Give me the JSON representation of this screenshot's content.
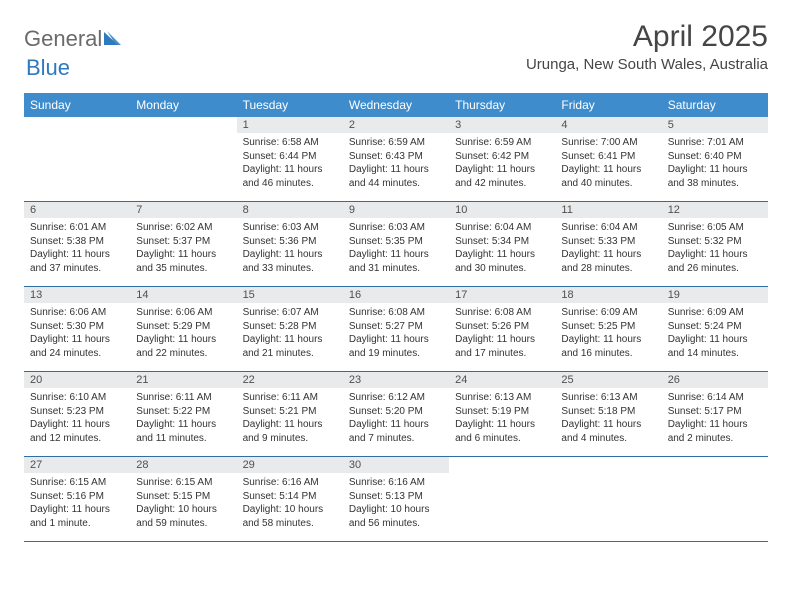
{
  "brand": {
    "textGray": "General",
    "textBlue": "Blue"
  },
  "title": {
    "month": "April 2025",
    "location": "Urunga, New South Wales, Australia"
  },
  "colors": {
    "headerBg": "#3e8ccc",
    "headerText": "#ffffff",
    "dayBarBg": "#e9eaec",
    "rowBorder": "#2f6da3",
    "logoBlue": "#2f7abf",
    "logoGray": "#6b6b6b",
    "bodyText": "#333333"
  },
  "dayHeaders": [
    "Sunday",
    "Monday",
    "Tuesday",
    "Wednesday",
    "Thursday",
    "Friday",
    "Saturday"
  ],
  "weeks": [
    [
      null,
      null,
      {
        "n": "1",
        "sr": "Sunrise: 6:58 AM",
        "ss": "Sunset: 6:44 PM",
        "d1": "Daylight: 11 hours",
        "d2": "and 46 minutes."
      },
      {
        "n": "2",
        "sr": "Sunrise: 6:59 AM",
        "ss": "Sunset: 6:43 PM",
        "d1": "Daylight: 11 hours",
        "d2": "and 44 minutes."
      },
      {
        "n": "3",
        "sr": "Sunrise: 6:59 AM",
        "ss": "Sunset: 6:42 PM",
        "d1": "Daylight: 11 hours",
        "d2": "and 42 minutes."
      },
      {
        "n": "4",
        "sr": "Sunrise: 7:00 AM",
        "ss": "Sunset: 6:41 PM",
        "d1": "Daylight: 11 hours",
        "d2": "and 40 minutes."
      },
      {
        "n": "5",
        "sr": "Sunrise: 7:01 AM",
        "ss": "Sunset: 6:40 PM",
        "d1": "Daylight: 11 hours",
        "d2": "and 38 minutes."
      }
    ],
    [
      {
        "n": "6",
        "sr": "Sunrise: 6:01 AM",
        "ss": "Sunset: 5:38 PM",
        "d1": "Daylight: 11 hours",
        "d2": "and 37 minutes."
      },
      {
        "n": "7",
        "sr": "Sunrise: 6:02 AM",
        "ss": "Sunset: 5:37 PM",
        "d1": "Daylight: 11 hours",
        "d2": "and 35 minutes."
      },
      {
        "n": "8",
        "sr": "Sunrise: 6:03 AM",
        "ss": "Sunset: 5:36 PM",
        "d1": "Daylight: 11 hours",
        "d2": "and 33 minutes."
      },
      {
        "n": "9",
        "sr": "Sunrise: 6:03 AM",
        "ss": "Sunset: 5:35 PM",
        "d1": "Daylight: 11 hours",
        "d2": "and 31 minutes."
      },
      {
        "n": "10",
        "sr": "Sunrise: 6:04 AM",
        "ss": "Sunset: 5:34 PM",
        "d1": "Daylight: 11 hours",
        "d2": "and 30 minutes."
      },
      {
        "n": "11",
        "sr": "Sunrise: 6:04 AM",
        "ss": "Sunset: 5:33 PM",
        "d1": "Daylight: 11 hours",
        "d2": "and 28 minutes."
      },
      {
        "n": "12",
        "sr": "Sunrise: 6:05 AM",
        "ss": "Sunset: 5:32 PM",
        "d1": "Daylight: 11 hours",
        "d2": "and 26 minutes."
      }
    ],
    [
      {
        "n": "13",
        "sr": "Sunrise: 6:06 AM",
        "ss": "Sunset: 5:30 PM",
        "d1": "Daylight: 11 hours",
        "d2": "and 24 minutes."
      },
      {
        "n": "14",
        "sr": "Sunrise: 6:06 AM",
        "ss": "Sunset: 5:29 PM",
        "d1": "Daylight: 11 hours",
        "d2": "and 22 minutes."
      },
      {
        "n": "15",
        "sr": "Sunrise: 6:07 AM",
        "ss": "Sunset: 5:28 PM",
        "d1": "Daylight: 11 hours",
        "d2": "and 21 minutes."
      },
      {
        "n": "16",
        "sr": "Sunrise: 6:08 AM",
        "ss": "Sunset: 5:27 PM",
        "d1": "Daylight: 11 hours",
        "d2": "and 19 minutes."
      },
      {
        "n": "17",
        "sr": "Sunrise: 6:08 AM",
        "ss": "Sunset: 5:26 PM",
        "d1": "Daylight: 11 hours",
        "d2": "and 17 minutes."
      },
      {
        "n": "18",
        "sr": "Sunrise: 6:09 AM",
        "ss": "Sunset: 5:25 PM",
        "d1": "Daylight: 11 hours",
        "d2": "and 16 minutes."
      },
      {
        "n": "19",
        "sr": "Sunrise: 6:09 AM",
        "ss": "Sunset: 5:24 PM",
        "d1": "Daylight: 11 hours",
        "d2": "and 14 minutes."
      }
    ],
    [
      {
        "n": "20",
        "sr": "Sunrise: 6:10 AM",
        "ss": "Sunset: 5:23 PM",
        "d1": "Daylight: 11 hours",
        "d2": "and 12 minutes."
      },
      {
        "n": "21",
        "sr": "Sunrise: 6:11 AM",
        "ss": "Sunset: 5:22 PM",
        "d1": "Daylight: 11 hours",
        "d2": "and 11 minutes."
      },
      {
        "n": "22",
        "sr": "Sunrise: 6:11 AM",
        "ss": "Sunset: 5:21 PM",
        "d1": "Daylight: 11 hours",
        "d2": "and 9 minutes."
      },
      {
        "n": "23",
        "sr": "Sunrise: 6:12 AM",
        "ss": "Sunset: 5:20 PM",
        "d1": "Daylight: 11 hours",
        "d2": "and 7 minutes."
      },
      {
        "n": "24",
        "sr": "Sunrise: 6:13 AM",
        "ss": "Sunset: 5:19 PM",
        "d1": "Daylight: 11 hours",
        "d2": "and 6 minutes."
      },
      {
        "n": "25",
        "sr": "Sunrise: 6:13 AM",
        "ss": "Sunset: 5:18 PM",
        "d1": "Daylight: 11 hours",
        "d2": "and 4 minutes."
      },
      {
        "n": "26",
        "sr": "Sunrise: 6:14 AM",
        "ss": "Sunset: 5:17 PM",
        "d1": "Daylight: 11 hours",
        "d2": "and 2 minutes."
      }
    ],
    [
      {
        "n": "27",
        "sr": "Sunrise: 6:15 AM",
        "ss": "Sunset: 5:16 PM",
        "d1": "Daylight: 11 hours",
        "d2": "and 1 minute."
      },
      {
        "n": "28",
        "sr": "Sunrise: 6:15 AM",
        "ss": "Sunset: 5:15 PM",
        "d1": "Daylight: 10 hours",
        "d2": "and 59 minutes."
      },
      {
        "n": "29",
        "sr": "Sunrise: 6:16 AM",
        "ss": "Sunset: 5:14 PM",
        "d1": "Daylight: 10 hours",
        "d2": "and 58 minutes."
      },
      {
        "n": "30",
        "sr": "Sunrise: 6:16 AM",
        "ss": "Sunset: 5:13 PM",
        "d1": "Daylight: 10 hours",
        "d2": "and 56 minutes."
      },
      null,
      null,
      null
    ]
  ]
}
